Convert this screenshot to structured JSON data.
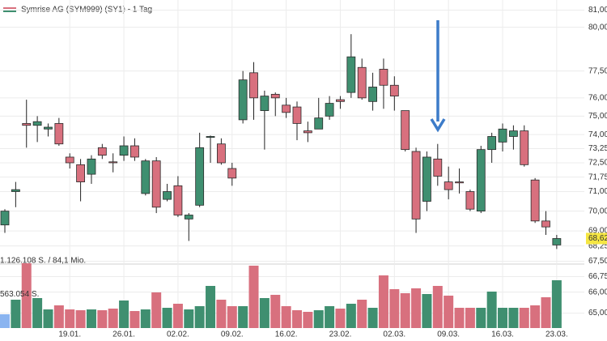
{
  "chart_data": {
    "type": "candlestick",
    "title": "Symrise AG (SYM999) (SY1) - 1 Tag",
    "categories": [
      null,
      null,
      null,
      null,
      null,
      null,
      "19.01.",
      null,
      null,
      null,
      null,
      "26.01.",
      null,
      null,
      null,
      null,
      "02.02.",
      null,
      null,
      null,
      null,
      "09.02.",
      null,
      null,
      null,
      null,
      "16.02.",
      null,
      null,
      null,
      null,
      "23.02.",
      null,
      null,
      null,
      null,
      "02.03.",
      null,
      null,
      null,
      null,
      "09.03.",
      null,
      null,
      null,
      null,
      "16.03.",
      null,
      null,
      null,
      null,
      "23.03."
    ],
    "open": [
      69.3,
      71.0,
      74.6,
      74.5,
      74.3,
      74.6,
      72.8,
      72.4,
      71.9,
      73.3,
      72.55,
      72.9,
      73.4,
      70.9,
      72.6,
      70.6,
      71.3,
      69.6,
      70.3,
      73.85,
      73.5,
      72.2,
      74.8,
      77.4,
      75.3,
      76.2,
      75.6,
      75.5,
      74.2,
      74.3,
      75.0,
      75.9,
      76.3,
      77.7,
      75.8,
      77.6,
      76.7,
      75.3,
      73.1,
      70.5,
      72.7,
      71.5,
      71.5,
      71.0,
      70.0,
      73.2,
      73.6,
      73.9,
      74.2,
      71.6,
      69.5,
      68.3
    ],
    "high": [
      70.1,
      71.5,
      75.9,
      75.0,
      74.6,
      74.9,
      73.0,
      72.7,
      72.9,
      73.5,
      73.0,
      73.9,
      73.8,
      72.7,
      72.8,
      71.4,
      71.8,
      69.9,
      74.1,
      73.95,
      73.8,
      72.5,
      77.5,
      78.0,
      76.4,
      76.3,
      76.0,
      75.8,
      74.7,
      76.0,
      76.1,
      76.1,
      79.6,
      78.2,
      77.4,
      78.2,
      77.2,
      75.3,
      73.3,
      73.1,
      73.5,
      72.3,
      72.2,
      71.1,
      73.4,
      74.1,
      74.6,
      74.5,
      74.5,
      71.7,
      70.0,
      68.8
    ],
    "low": [
      68.9,
      70.2,
      73.3,
      73.6,
      73.9,
      73.4,
      72.2,
      70.5,
      71.4,
      72.7,
      72.0,
      72.6,
      72.6,
      70.8,
      69.9,
      70.5,
      69.7,
      68.5,
      70.2,
      72.5,
      72.4,
      71.3,
      74.6,
      74.8,
      73.2,
      75.0,
      74.9,
      73.7,
      73.6,
      74.3,
      74.8,
      75.4,
      76.0,
      75.9,
      75.3,
      75.4,
      75.3,
      73.1,
      68.9,
      70.0,
      71.3,
      70.6,
      70.9,
      70.0,
      69.9,
      72.5,
      73.1,
      73.2,
      72.3,
      69.4,
      68.8,
      68.1
    ],
    "close": [
      70.0,
      71.1,
      74.5,
      74.7,
      74.4,
      73.5,
      72.5,
      71.5,
      72.7,
      72.9,
      72.5,
      73.4,
      72.8,
      72.6,
      70.2,
      71.0,
      69.8,
      69.8,
      73.3,
      73.9,
      72.5,
      71.7,
      77.0,
      76.0,
      76.1,
      76.0,
      75.2,
      74.6,
      74.1,
      74.9,
      75.7,
      75.8,
      78.3,
      76.0,
      76.6,
      76.7,
      76.1,
      73.2,
      69.6,
      72.8,
      71.8,
      71.1,
      71.45,
      70.1,
      73.2,
      73.9,
      74.3,
      74.2,
      72.4,
      69.5,
      69.2,
      68.62
    ],
    "last_price_label": "68,62",
    "volume": [
      230656,
      474880,
      1085440,
      502016,
      312064,
      379904,
      312064,
      298496,
      312064,
      298496,
      325632,
      461312,
      284928,
      312064,
      596992,
      339200,
      407040,
      312064,
      366336,
      705536,
      474880,
      366336,
      366336,
      1044736,
      502016,
      556288,
      366336,
      298496,
      271360,
      298496,
      366336,
      325632,
      407040,
      474880,
      339200,
      881920,
      651264,
      583424,
      664832,
      569856,
      705536,
      542720,
      339200,
      339200,
      339200,
      610560,
      339200,
      339200,
      339200,
      379904,
      515584,
      800512
    ],
    "up_color": "#3f8f70",
    "down_color": "#d8707e",
    "volume_first_color": "#8ab4f0",
    "log_scale": true,
    "grid": true,
    "ylim": [
      64.3,
      81.6
    ],
    "yticks": [
      {
        "value": 81,
        "label": "81,00"
      },
      {
        "value": 80,
        "label": "80,00"
      },
      {
        "value": 77.5,
        "label": "77,50"
      },
      {
        "value": 76,
        "label": "76,00"
      },
      {
        "value": 75,
        "label": "75,00"
      },
      {
        "value": 74,
        "label": "74,00"
      },
      {
        "value": 73.25,
        "label": "73,25"
      },
      {
        "value": 72.5,
        "label": "72,50"
      },
      {
        "value": 71.75,
        "label": "71,75"
      },
      {
        "value": 71,
        "label": "71,00"
      },
      {
        "value": 70,
        "label": "70,00"
      },
      {
        "value": 69,
        "label": "69,00"
      },
      {
        "value": 68.25,
        "label": "68,25"
      },
      {
        "value": 67.5,
        "label": "67,50"
      },
      {
        "value": 66.75,
        "label": "66,75"
      },
      {
        "value": 66,
        "label": "66,00"
      },
      {
        "value": 65,
        "label": "65,00"
      }
    ],
    "volume_ylim": [
      0,
      1126108
    ],
    "volume_ticks": [
      {
        "value": 1126108,
        "label": "1.126.108 S. / 84,1 Mio."
      },
      {
        "value": 563054,
        "label": "563.054 S."
      }
    ]
  }
}
